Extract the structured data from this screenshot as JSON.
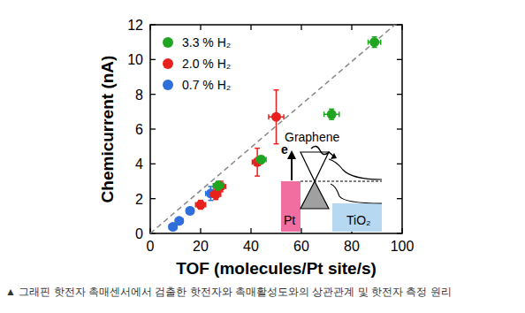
{
  "chart_data": {
    "type": "scatter",
    "x_label": "TOF (molecules/Pt site/s)",
    "y_label": "Chemicurrent (nA)",
    "caption": "▲ 그래핀 핫전자 촉매센서에서 검출한 핫전자와 촉매활성도와의 상관관계 및 핫전자 측정 원리",
    "xlim": [
      0,
      100
    ],
    "ylim": [
      0,
      12
    ],
    "xticks": [
      0,
      20,
      40,
      60,
      80,
      100
    ],
    "yticks": [
      0,
      2,
      4,
      6,
      8,
      10,
      12
    ],
    "grid": false,
    "legend": "top-left",
    "marker": "circle",
    "series": [
      {
        "name": "3.3 % H₂",
        "color": "#1fa51f",
        "x": [
          27,
          44,
          72,
          89
        ],
        "values": [
          2.75,
          4.25,
          6.85,
          11.0
        ],
        "x_errors": [
          2,
          2,
          3,
          2.5
        ],
        "errors": [
          0.25,
          0.2,
          0.3,
          0.3
        ]
      },
      {
        "name": "2.0 % H₂",
        "color": "#e8201e",
        "x": [
          20,
          26,
          28,
          42.5,
          50
        ],
        "values": [
          1.65,
          2.25,
          2.7,
          4.1,
          6.7
        ],
        "x_errors": [
          2,
          2,
          2,
          2,
          3
        ],
        "errors": [
          0.25,
          0.3,
          0.3,
          0.8,
          1.55
        ]
      },
      {
        "name": "0.7 % H₂",
        "color": "#2e6fdc",
        "x": [
          9,
          11.5,
          15.8,
          24
        ],
        "values": [
          0.38,
          0.72,
          1.3,
          2.3
        ],
        "x_errors": [
          1.5,
          1.5,
          1.5,
          2
        ],
        "errors": [
          0.15,
          0.15,
          0.2,
          0.4
        ]
      }
    ],
    "trend_line": {
      "x": [
        0,
        100
      ],
      "values": [
        0,
        12.36
      ],
      "line_style": "dashed",
      "color": "#888888"
    },
    "inset": {
      "top_label": "Graphene",
      "electron": "e",
      "left_label": "Pt",
      "right_label": "TiO₂"
    }
  }
}
